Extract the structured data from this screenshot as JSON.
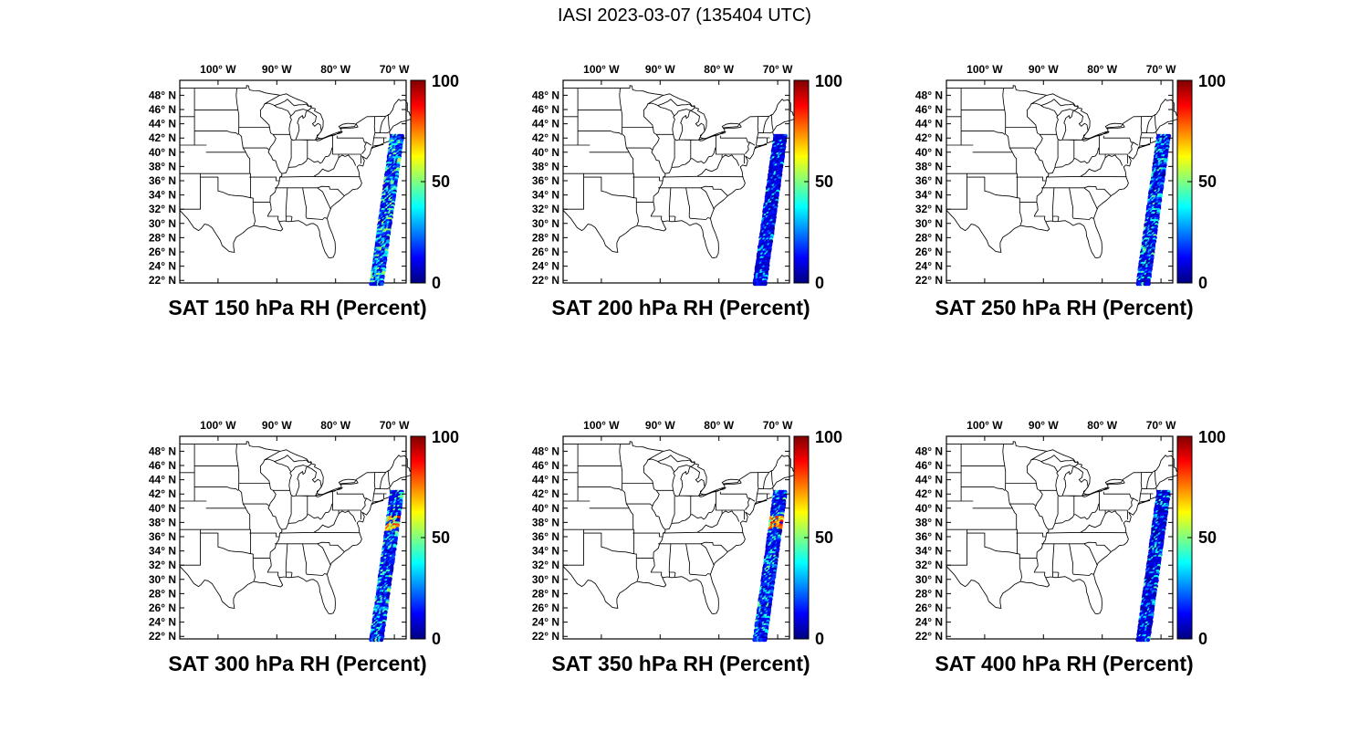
{
  "figure_title": "IASI 2023-03-07 (135404 UTC)",
  "axes": {
    "lon_tick_labels": [
      "100° W",
      "90° W",
      "80° W",
      "70° W"
    ],
    "lon_tick_values": [
      -100,
      -90,
      -80,
      -70
    ],
    "lat_tick_labels": [
      "48° N",
      "46° N",
      "44° N",
      "42° N",
      "40° N",
      "38° N",
      "36° N",
      "34° N",
      "32° N",
      "30° N",
      "28° N",
      "26° N",
      "24° N",
      "22° N"
    ],
    "lat_tick_values": [
      48,
      46,
      44,
      42,
      40,
      38,
      36,
      34,
      32,
      30,
      28,
      26,
      24,
      22
    ],
    "lon_range": [
      -106.5,
      -68.0
    ],
    "lat_range": [
      21.6,
      50.1
    ]
  },
  "colorbar": {
    "label_max": "100",
    "label_mid": "50",
    "label_min": "0",
    "range": [
      0,
      100
    ],
    "colormap": "jet"
  },
  "panels": [
    {
      "title": "SAT 150 hPa RH (Percent)",
      "level_hPa": 150,
      "swath": {
        "base": [
          4,
          22
        ],
        "speckle_chance": 0.45,
        "speckle": [
          26,
          58
        ],
        "hotspot": null
      }
    },
    {
      "title": "SAT 200 hPa RH (Percent)",
      "level_hPa": 200,
      "swath": {
        "base": [
          3,
          16
        ],
        "speckle_chance": 0.18,
        "speckle": [
          20,
          45
        ],
        "hotspot": null
      }
    },
    {
      "title": "SAT 250 hPa RH (Percent)",
      "level_hPa": 250,
      "swath": {
        "base": [
          3,
          18
        ],
        "speckle_chance": 0.3,
        "speckle": [
          24,
          50
        ],
        "hotspot": null
      }
    },
    {
      "title": "SAT 300 hPa RH (Percent)",
      "level_hPa": 300,
      "swath": {
        "base": [
          4,
          20
        ],
        "speckle_chance": 0.3,
        "speckle": [
          24,
          52
        ],
        "hotspot": [
          36.8,
          38.8,
          45,
          85
        ]
      }
    },
    {
      "title": "SAT 350 hPa RH (Percent)",
      "level_hPa": 350,
      "swath": {
        "base": [
          4,
          20
        ],
        "speckle_chance": 0.25,
        "speckle": [
          24,
          50
        ],
        "hotspot": [
          37.0,
          38.8,
          50,
          88
        ]
      }
    },
    {
      "title": "SAT 400 hPa RH (Percent)",
      "level_hPa": 400,
      "swath": {
        "base": [
          3,
          15
        ],
        "speckle_chance": 0.22,
        "speckle": [
          20,
          46
        ],
        "hotspot": null
      }
    }
  ],
  "chart_data": {
    "type": "scatter",
    "title": "IASI 2023-03-07 (135404 UTC)",
    "variable": "Relative humidity (Percent) retrieved from the IASI satellite sounder",
    "layout": "2 rows x 3 columns of identical CONUS maps with individual jet colorbars",
    "map_extent": {
      "lon": [
        -106.5,
        -68.0
      ],
      "lat": [
        21.6,
        50.1
      ]
    },
    "colormap": "jet",
    "colorbar_range": [
      0,
      100
    ],
    "colorbar_ticks": [
      0,
      50,
      100
    ],
    "panels": [
      {
        "title": "SAT 150 hPa RH (Percent)",
        "level_hPa": 150,
        "swath_lat_range": [
          22,
          42
        ],
        "swath_lon_range": [
          -73.5,
          -68.5
        ],
        "rh_typical_range": [
          5,
          30
        ],
        "rh_scattered_max": 58
      },
      {
        "title": "SAT 200 hPa RH (Percent)",
        "level_hPa": 200,
        "swath_lat_range": [
          22,
          42
        ],
        "swath_lon_range": [
          -73.5,
          -68.5
        ],
        "rh_typical_range": [
          3,
          20
        ],
        "rh_scattered_max": 45
      },
      {
        "title": "SAT 250 hPa RH (Percent)",
        "level_hPa": 250,
        "swath_lat_range": [
          22,
          42
        ],
        "swath_lon_range": [
          -73.5,
          -68.5
        ],
        "rh_typical_range": [
          3,
          25
        ],
        "rh_scattered_max": 50
      },
      {
        "title": "SAT 300 hPa RH (Percent)",
        "level_hPa": 300,
        "swath_lat_range": [
          22,
          42
        ],
        "swath_lon_range": [
          -73.5,
          -68.5
        ],
        "rh_typical_range": [
          5,
          25
        ],
        "rh_local_max": 85,
        "rh_local_max_lat": [
          36.8,
          38.8
        ]
      },
      {
        "title": "SAT 350 hPa RH (Percent)",
        "level_hPa": 350,
        "swath_lat_range": [
          22,
          42
        ],
        "swath_lon_range": [
          -73.5,
          -68.5
        ],
        "rh_typical_range": [
          5,
          25
        ],
        "rh_local_max": 88,
        "rh_local_max_lat": [
          37.0,
          38.8
        ]
      },
      {
        "title": "SAT 400 hPa RH (Percent)",
        "level_hPa": 400,
        "swath_lat_range": [
          22,
          42
        ],
        "swath_lon_range": [
          -73.5,
          -68.5
        ],
        "rh_typical_range": [
          3,
          20
        ],
        "rh_scattered_max": 46
      }
    ],
    "notes": "Single IASI overpass swath off the US East Coast (narrow diagonal strip of circular footprints). Values estimated from colors: mostly deep blue 0-30% with cyan/green speckles; yellow-green local maximum near 37-39N at 300-350 hPa."
  }
}
